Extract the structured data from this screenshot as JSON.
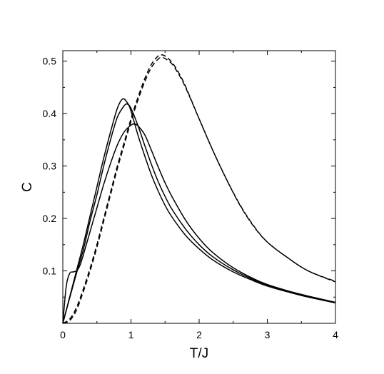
{
  "chart_data": {
    "type": "line",
    "title": "",
    "xlabel": "T/J",
    "ylabel": "C",
    "xlim": [
      0,
      4
    ],
    "ylim": [
      0,
      0.52
    ],
    "xticks": [
      0,
      1,
      2,
      3,
      4
    ],
    "xtick_labels": [
      "0",
      "1",
      "2",
      "3",
      "4"
    ],
    "yticks": [
      0.1,
      0.2,
      0.3,
      0.4,
      0.5
    ],
    "ytick_labels": [
      "0.1",
      "0.2",
      "0.3",
      "0.4",
      "0.5"
    ],
    "grid": false,
    "legend": "none",
    "line_color": "#000000",
    "series": [
      {
        "style": "solid",
        "x": [
          0,
          0.1,
          0.2,
          0.3,
          0.4,
          0.5,
          0.6,
          0.7,
          0.8,
          0.88,
          0.95,
          1.0,
          1.1,
          1.2,
          1.3,
          1.4,
          1.5,
          1.6,
          1.8,
          2.0,
          2.2,
          2.5,
          2.8,
          3.0,
          3.3,
          3.6,
          4.0
        ],
        "y": [
          0,
          0.05,
          0.1,
          0.15,
          0.205,
          0.26,
          0.315,
          0.365,
          0.41,
          0.428,
          0.42,
          0.405,
          0.36,
          0.32,
          0.283,
          0.252,
          0.225,
          0.203,
          0.168,
          0.142,
          0.121,
          0.098,
          0.081,
          0.071,
          0.06,
          0.05,
          0.039
        ]
      },
      {
        "style": "solid",
        "x": [
          0,
          0.1,
          0.2,
          0.3,
          0.4,
          0.5,
          0.6,
          0.7,
          0.8,
          0.9,
          0.95,
          1.0,
          1.1,
          1.2,
          1.3,
          1.4,
          1.5,
          1.6,
          1.8,
          2.0,
          2.2,
          2.5,
          2.8,
          3.0,
          3.3,
          3.6,
          4.0
        ],
        "y": [
          0,
          0.048,
          0.095,
          0.14,
          0.195,
          0.245,
          0.3,
          0.35,
          0.393,
          0.415,
          0.418,
          0.41,
          0.378,
          0.34,
          0.303,
          0.27,
          0.242,
          0.218,
          0.18,
          0.15,
          0.127,
          0.102,
          0.083,
          0.073,
          0.061,
          0.051,
          0.04
        ]
      },
      {
        "style": "solid",
        "x": [
          0,
          0.05,
          0.1,
          0.15,
          0.2,
          0.25,
          0.3,
          0.4,
          0.5,
          0.6,
          0.7,
          0.8,
          0.9,
          1.0,
          1.05,
          1.1,
          1.2,
          1.3,
          1.4,
          1.5,
          1.6,
          1.8,
          2.0,
          2.2,
          2.5,
          2.8,
          3.0,
          3.3,
          3.6,
          4.0
        ],
        "y": [
          0,
          0.07,
          0.095,
          0.098,
          0.1,
          0.11,
          0.13,
          0.175,
          0.22,
          0.265,
          0.305,
          0.34,
          0.365,
          0.378,
          0.38,
          0.377,
          0.36,
          0.33,
          0.298,
          0.268,
          0.242,
          0.197,
          0.162,
          0.135,
          0.106,
          0.085,
          0.074,
          0.062,
          0.052,
          0.04
        ]
      },
      {
        "style": "dashed",
        "x": [
          0,
          0.1,
          0.2,
          0.3,
          0.4,
          0.5,
          0.6,
          0.7,
          0.8,
          0.9,
          1.0,
          1.1,
          1.2,
          1.3,
          1.4,
          1.45,
          1.5,
          1.6,
          1.7,
          1.8,
          2.0,
          2.2,
          2.4,
          2.6,
          2.8,
          3.0,
          3.3,
          3.6,
          4.0
        ],
        "y": [
          0,
          0.005,
          0.025,
          0.06,
          0.1,
          0.145,
          0.195,
          0.245,
          0.295,
          0.34,
          0.385,
          0.425,
          0.46,
          0.488,
          0.504,
          0.507,
          0.505,
          0.495,
          0.475,
          0.45,
          0.39,
          0.33,
          0.275,
          0.225,
          0.185,
          0.155,
          0.125,
          0.1,
          0.079
        ]
      },
      {
        "style": "dashed",
        "x": [
          0,
          0.1,
          0.2,
          0.3,
          0.4,
          0.5,
          0.6,
          0.7,
          0.8,
          0.9,
          1.0,
          1.1,
          1.2,
          1.3,
          1.4,
          1.45,
          1.5,
          1.6,
          1.7,
          1.8,
          2.0,
          2.2,
          2.4,
          2.6,
          2.8,
          3.0,
          3.3,
          3.6,
          4.0
        ],
        "y": [
          0,
          0.008,
          0.03,
          0.065,
          0.105,
          0.15,
          0.2,
          0.25,
          0.3,
          0.345,
          0.39,
          0.43,
          0.466,
          0.494,
          0.51,
          0.512,
          0.51,
          0.498,
          0.478,
          0.452,
          0.39,
          0.33,
          0.275,
          0.226,
          0.186,
          0.155,
          0.125,
          0.1,
          0.08
        ]
      }
    ]
  }
}
